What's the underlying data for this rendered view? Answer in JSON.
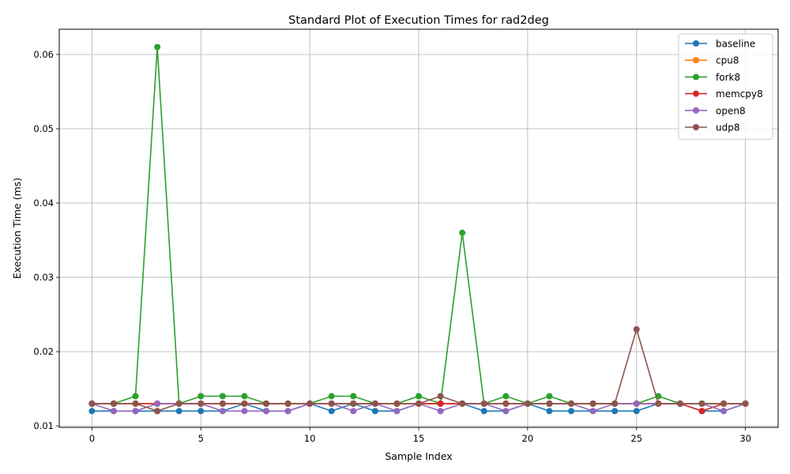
{
  "chart_data": {
    "type": "line",
    "title": "Standard Plot of Execution Times for rad2deg",
    "xlabel": "Sample Index",
    "ylabel": "Execution Time (ms)",
    "xlim": [
      -1.5,
      31.5
    ],
    "ylim": [
      0.0098,
      0.0634
    ],
    "xticks": [
      0,
      5,
      10,
      15,
      20,
      25,
      30
    ],
    "xtick_labels": [
      "0",
      "5",
      "10",
      "15",
      "20",
      "25",
      "30"
    ],
    "yticks": [
      0.01,
      0.02,
      0.03,
      0.04,
      0.05,
      0.06
    ],
    "ytick_labels": [
      "0.01",
      "0.02",
      "0.03",
      "0.04",
      "0.05",
      "0.06"
    ],
    "grid": true,
    "legend_position": "top-right",
    "x": [
      0,
      1,
      2,
      3,
      4,
      5,
      6,
      7,
      8,
      9,
      10,
      11,
      12,
      13,
      14,
      15,
      16,
      17,
      18,
      19,
      20,
      21,
      22,
      23,
      24,
      25,
      26,
      27,
      28,
      29,
      30
    ],
    "series": [
      {
        "name": "baseline",
        "color": "#1f77b4",
        "values": [
          0.012,
          0.012,
          0.012,
          0.012,
          0.012,
          0.012,
          0.012,
          0.013,
          0.012,
          0.012,
          0.013,
          0.012,
          0.013,
          0.012,
          0.012,
          0.013,
          0.013,
          0.013,
          0.012,
          0.012,
          0.013,
          0.012,
          0.012,
          0.012,
          0.012,
          0.012,
          0.013,
          0.013,
          0.012,
          0.012,
          0.013
        ]
      },
      {
        "name": "cpu8",
        "color": "#ff7f0e",
        "values": [
          0.013,
          0.013,
          0.013,
          0.013,
          0.013,
          0.013,
          0.013,
          0.013,
          0.013,
          0.013,
          0.013,
          0.013,
          0.013,
          0.013,
          0.013,
          0.013,
          0.013,
          0.013,
          0.013,
          0.013,
          0.013,
          0.013,
          0.013,
          0.013,
          0.013,
          0.013,
          0.013,
          0.013,
          0.013,
          0.013,
          0.013
        ]
      },
      {
        "name": "fork8",
        "color": "#2ca02c",
        "values": [
          0.013,
          0.013,
          0.014,
          0.061,
          0.013,
          0.014,
          0.014,
          0.014,
          0.013,
          0.013,
          0.013,
          0.014,
          0.014,
          0.013,
          0.013,
          0.014,
          0.013,
          0.036,
          0.013,
          0.014,
          0.013,
          0.014,
          0.013,
          0.013,
          0.013,
          0.013,
          0.014,
          0.013,
          0.013,
          0.013,
          0.013
        ]
      },
      {
        "name": "memcpy8",
        "color": "#d62728",
        "values": [
          0.013,
          0.013,
          0.013,
          0.013,
          0.013,
          0.013,
          0.013,
          0.013,
          0.013,
          0.013,
          0.013,
          0.013,
          0.013,
          0.013,
          0.013,
          0.013,
          0.013,
          0.013,
          0.013,
          0.013,
          0.013,
          0.013,
          0.013,
          0.013,
          0.013,
          0.013,
          0.013,
          0.013,
          0.012,
          0.013,
          0.013
        ]
      },
      {
        "name": "open8",
        "color": "#9467bd",
        "values": [
          0.013,
          0.012,
          0.012,
          0.013,
          0.013,
          0.013,
          0.012,
          0.012,
          0.012,
          0.012,
          0.013,
          0.013,
          0.012,
          0.013,
          0.012,
          0.013,
          0.012,
          0.013,
          0.013,
          0.012,
          0.013,
          0.013,
          0.013,
          0.012,
          0.013,
          0.013,
          0.013,
          0.013,
          0.013,
          0.012,
          0.013
        ]
      },
      {
        "name": "udp8",
        "color": "#8c564b",
        "values": [
          0.013,
          0.013,
          0.013,
          0.012,
          0.013,
          0.013,
          0.013,
          0.013,
          0.013,
          0.013,
          0.013,
          0.013,
          0.013,
          0.013,
          0.013,
          0.013,
          0.014,
          0.013,
          0.013,
          0.013,
          0.013,
          0.013,
          0.013,
          0.013,
          0.013,
          0.023,
          0.013,
          0.013,
          0.013,
          0.013,
          0.013
        ]
      }
    ]
  }
}
